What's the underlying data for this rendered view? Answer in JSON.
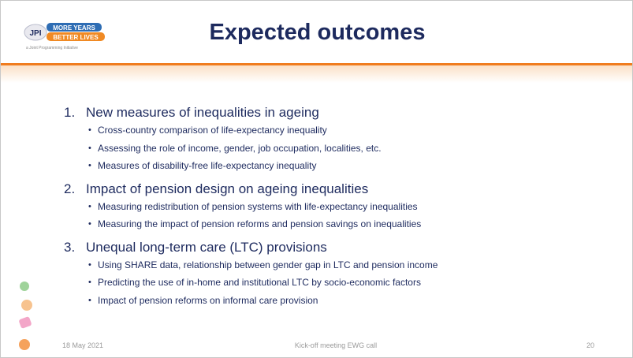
{
  "header": {
    "logo": {
      "jpi": "JPI",
      "line1": "MORE YEARS",
      "line2": "BETTER LIVES",
      "tagline": "a Joint Programming Initiative"
    },
    "title": "Expected outcomes"
  },
  "items": [
    {
      "number": "1.",
      "heading": "New measures of inequalities in ageing",
      "bullets": [
        "Cross-country comparison of life-expectancy inequality",
        "Assessing the role of income, gender, job occupation, localities, etc.",
        "Measures of disability-free life-expectancy inequality"
      ]
    },
    {
      "number": "2.",
      "heading": "Impact of pension design on ageing inequalities",
      "bullets": [
        "Measuring redistribution of pension systems with life-expectancy inequalities",
        "Measuring the impact of pension reforms and pension savings on inequalities"
      ]
    },
    {
      "number": "3.",
      "heading": "Unequal long-term care (LTC) provisions",
      "bullets": [
        "Using SHARE data, relationship between gender gap in LTC and pension income",
        "Predicting the use of in-home and institutional LTC by socio-economic factors",
        "Impact of pension reforms on informal care provision"
      ]
    }
  ],
  "footer": {
    "date": "18 May 2021",
    "event": "Kick-off meeting EWG call",
    "page": 20
  }
}
